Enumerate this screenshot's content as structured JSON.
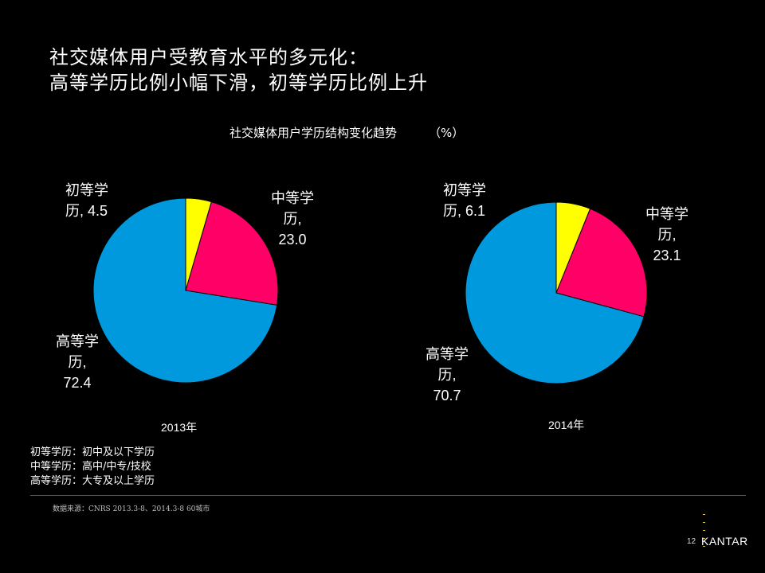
{
  "slide": {
    "title_line1": "社交媒体用户受教育水平的多元化：",
    "title_line2": "高等学历比例小幅下滑，初等学历比例上升",
    "chart_title": "社交媒体用户学历结构变化趋势",
    "chart_unit": "（%）"
  },
  "chart_data": [
    {
      "type": "pie",
      "title": "2013年",
      "categories": [
        "初等学历",
        "中等学历",
        "高等学历"
      ],
      "values": [
        4.5,
        23.0,
        72.4
      ],
      "value_labels": [
        "4.5",
        "23.0",
        "72.4"
      ],
      "colors": [
        "#ffff00",
        "#ff0066",
        "#0099dd"
      ]
    },
    {
      "type": "pie",
      "title": "2014年",
      "categories": [
        "初等学历",
        "中等学历",
        "高等学历"
      ],
      "values": [
        6.1,
        23.1,
        70.7
      ],
      "value_labels": [
        "6.1",
        "23.1",
        "70.7"
      ],
      "colors": [
        "#ffff00",
        "#ff0066",
        "#0099dd"
      ]
    }
  ],
  "legend": {
    "line1": "初等学历：初中及以下学历",
    "line2": "中等学历：高中/中专/技校",
    "line3": "高等学历：大专及以上学历"
  },
  "footer": {
    "source": "数据来源：CNRS 2013.3-8、2014.3-8   60城市",
    "page_number": "12",
    "brand": "KANTAR"
  },
  "labels": {
    "y2013": {
      "primary_name": "初等学",
      "primary_rest": "历, ",
      "secondary_name": "中等学",
      "secondary_rest": "历,",
      "higher_name": "高等学",
      "higher_rest": "历,"
    },
    "y2014": {
      "primary_name": "初等学",
      "primary_rest": "历, ",
      "secondary_name": "中等学",
      "secondary_rest": "历,",
      "higher_name": "高等学",
      "higher_rest": "历,"
    }
  }
}
